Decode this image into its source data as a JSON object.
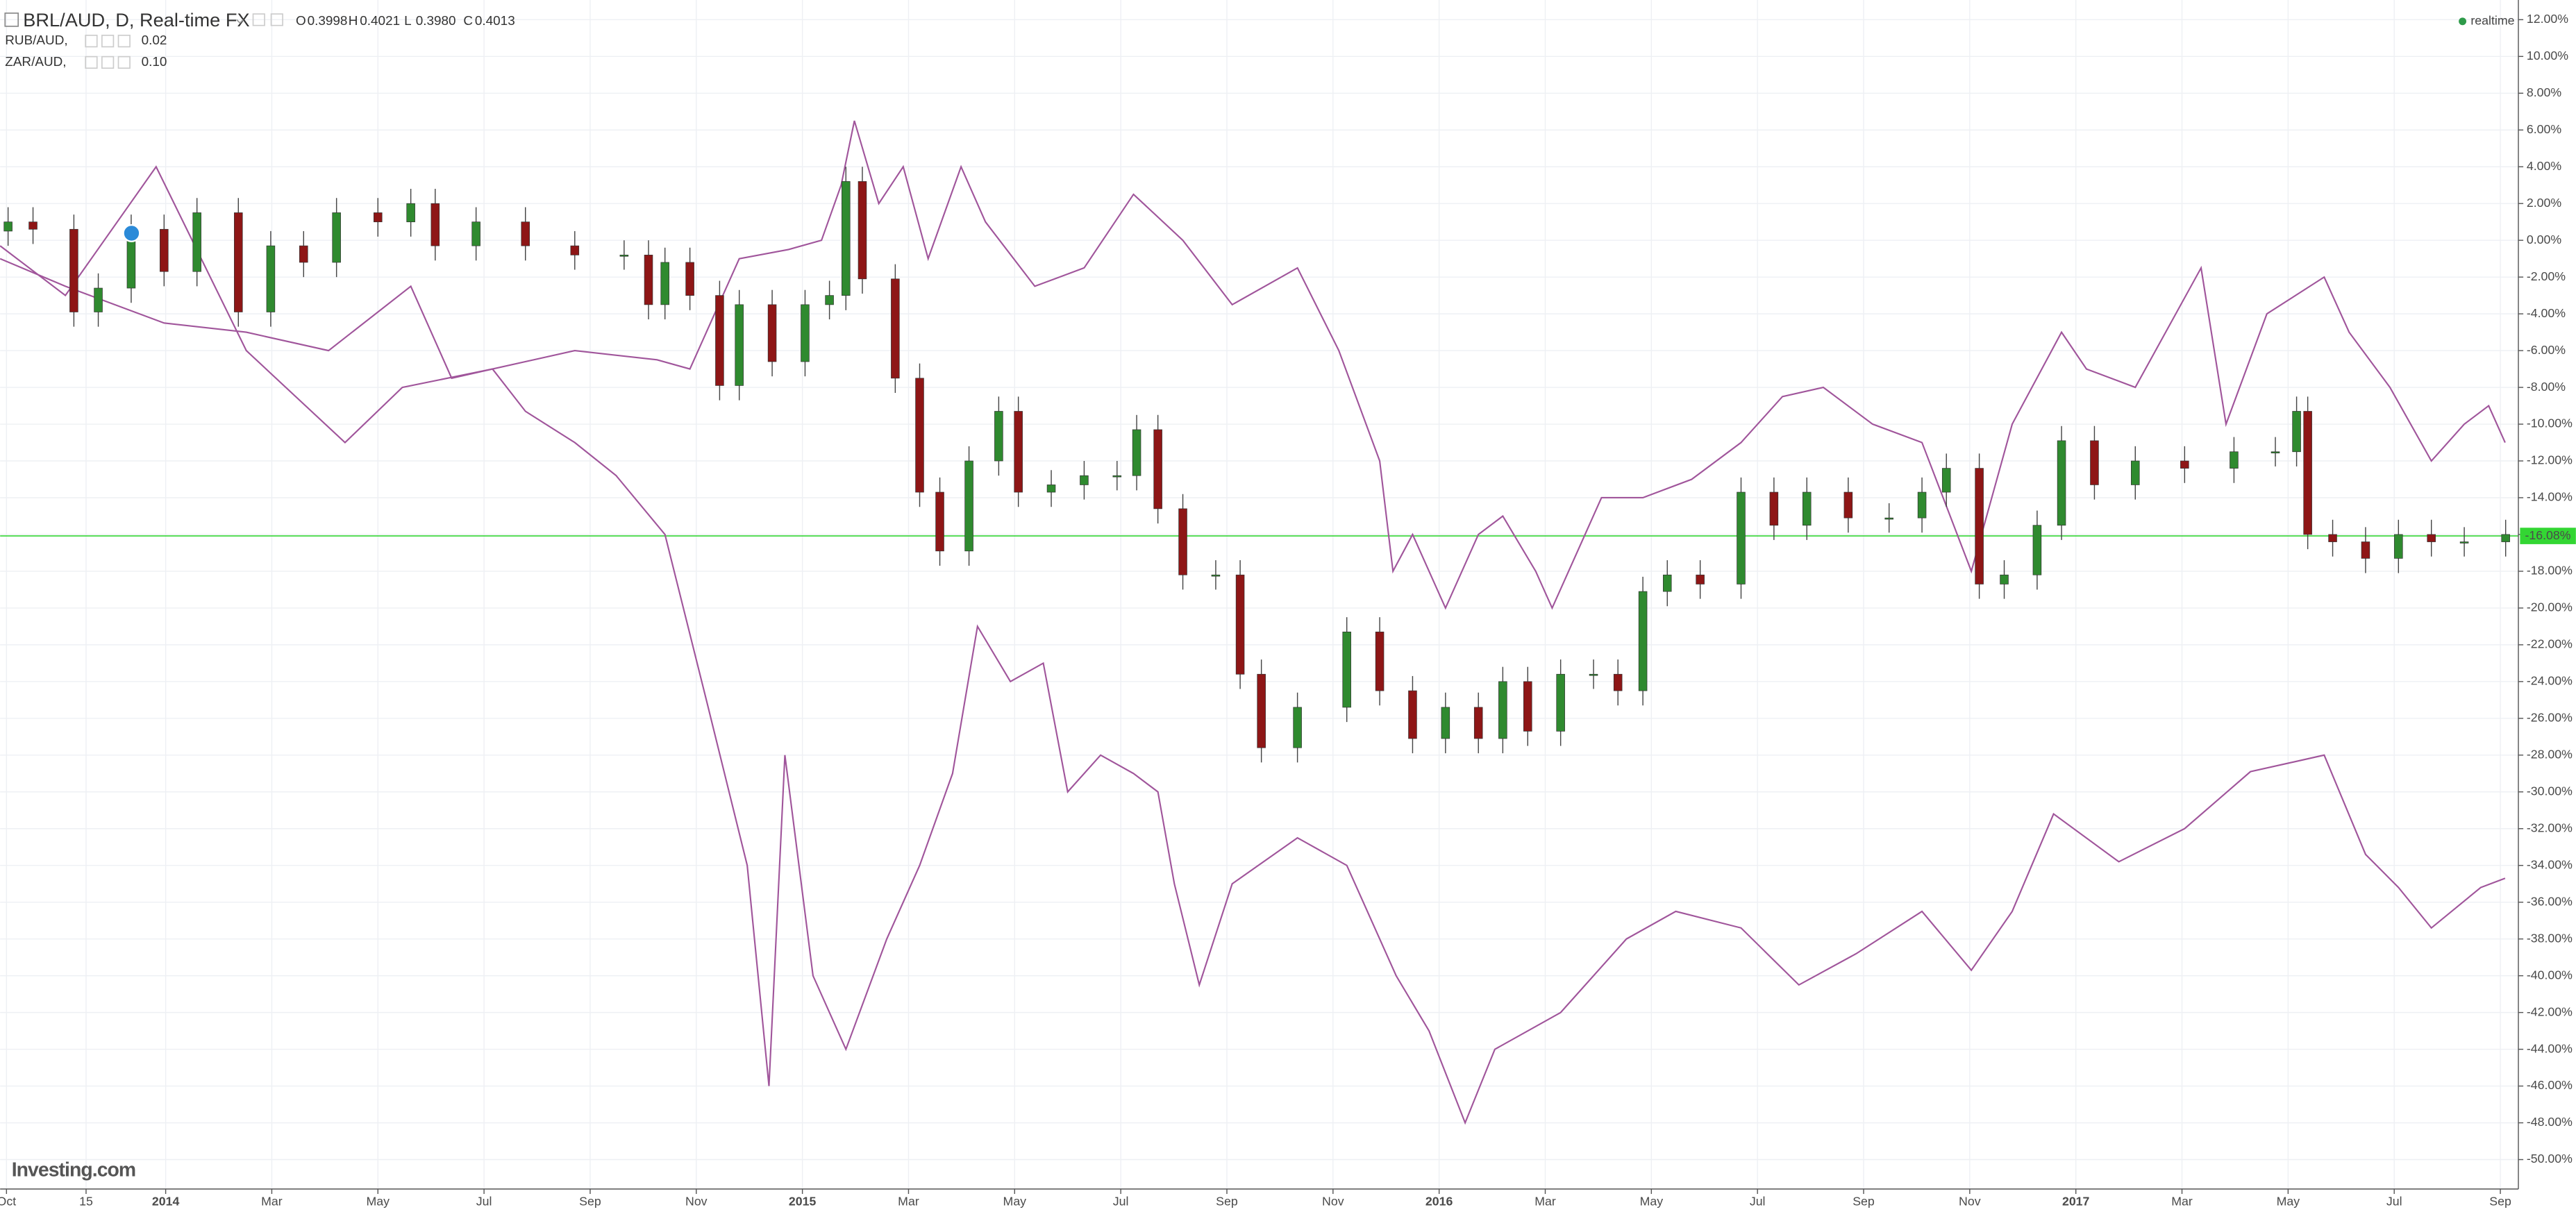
{
  "chart_data": {
    "type": "candlestick",
    "title": "BRL/AUD, D, Real-time FX",
    "ohlc": [
      {
        "label": "O",
        "value": "0.3998"
      },
      {
        "label": "H",
        "value": "0.4021"
      },
      {
        "label": "L",
        "value": "0.3980"
      },
      {
        "label": "C",
        "value": "0.4013"
      }
    ],
    "status": "realtime",
    "watermark": "Investing.com",
    "grid": true,
    "up_color": "#2f8a2f",
    "down_color": "#8e1616",
    "last_price": {
      "value": -16.08,
      "label": "-16.08%"
    },
    "last_price_color": "#33d633",
    "xlim": [
      -0.12,
      47.34
    ],
    "ylim": [
      -51.6,
      13.07
    ],
    "xticks": [
      {
        "value": 0,
        "label": "Oct"
      },
      {
        "value": 1.5,
        "label": "15"
      },
      {
        "value": 3,
        "label": "2014"
      },
      {
        "value": 5,
        "label": "Mar"
      },
      {
        "value": 7,
        "label": "May"
      },
      {
        "value": 9,
        "label": "Jul"
      },
      {
        "value": 11,
        "label": "Sep"
      },
      {
        "value": 13,
        "label": "Nov"
      },
      {
        "value": 15,
        "label": "2015"
      },
      {
        "value": 17,
        "label": "Mar"
      },
      {
        "value": 19,
        "label": "May"
      },
      {
        "value": 21,
        "label": "Jul"
      },
      {
        "value": 23,
        "label": "Sep"
      },
      {
        "value": 25,
        "label": "Nov"
      },
      {
        "value": 27,
        "label": "2016"
      },
      {
        "value": 29,
        "label": "Mar"
      },
      {
        "value": 31,
        "label": "May"
      },
      {
        "value": 33,
        "label": "Jul"
      },
      {
        "value": 35,
        "label": "Sep"
      },
      {
        "value": 37,
        "label": "Nov"
      },
      {
        "value": 39,
        "label": "2017"
      },
      {
        "value": 41,
        "label": "Mar"
      },
      {
        "value": 43,
        "label": "May"
      },
      {
        "value": 45,
        "label": "Jul"
      },
      {
        "value": 47,
        "label": "Sep"
      }
    ],
    "yticks": [
      {
        "value": 12,
        "label": "12.00%"
      },
      {
        "value": 10,
        "label": "10.00%"
      },
      {
        "value": 8,
        "label": "8.00%"
      },
      {
        "value": 6,
        "label": "6.00%"
      },
      {
        "value": 4,
        "label": "4.00%"
      },
      {
        "value": 2,
        "label": "2.00%"
      },
      {
        "value": 0,
        "label": "0.00%"
      },
      {
        "value": -2,
        "label": "-2.00%"
      },
      {
        "value": -4,
        "label": "-4.00%"
      },
      {
        "value": -6,
        "label": "-6.00%"
      },
      {
        "value": -8,
        "label": "-8.00%"
      },
      {
        "value": -10,
        "label": "-10.00%"
      },
      {
        "value": -12,
        "label": "-12.00%"
      },
      {
        "value": -14,
        "label": "-14.00%"
      },
      {
        "value": -16,
        "label": "-16.00%"
      },
      {
        "value": -18,
        "label": "-18.00%"
      },
      {
        "value": -20,
        "label": "-20.00%"
      },
      {
        "value": -22,
        "label": "-22.00%"
      },
      {
        "value": -24,
        "label": "-24.00%"
      },
      {
        "value": -26,
        "label": "-26.00%"
      },
      {
        "value": -28,
        "label": "-28.00%"
      },
      {
        "value": -30,
        "label": "-30.00%"
      },
      {
        "value": -32,
        "label": "-32.00%"
      },
      {
        "value": -34,
        "label": "-34.00%"
      },
      {
        "value": -36,
        "label": "-36.00%"
      },
      {
        "value": -38,
        "label": "-38.00%"
      },
      {
        "value": -40,
        "label": "-40.00%"
      },
      {
        "value": -42,
        "label": "-42.00%"
      },
      {
        "value": -44,
        "label": "-44.00%"
      },
      {
        "value": -46,
        "label": "-46.00%"
      },
      {
        "value": -48,
        "label": "-48.00%"
      },
      {
        "value": -50,
        "label": "-50.00%"
      }
    ],
    "x": [
      0.03,
      0.5,
      1.27,
      1.73,
      2.35,
      2.97,
      3.59,
      4.37,
      4.98,
      5.6,
      6.22,
      7.0,
      7.62,
      8.08,
      8.85,
      9.78,
      10.71,
      11.64,
      12.1,
      12.41,
      12.88,
      13.44,
      13.81,
      14.43,
      15.05,
      15.51,
      15.82,
      16.13,
      16.75,
      17.21,
      17.59,
      18.14,
      18.7,
      19.07,
      19.69,
      20.31,
      20.93,
      21.3,
      21.7,
      22.17,
      22.79,
      23.25,
      23.65,
      24.33,
      25.26,
      25.88,
      26.5,
      27.12,
      27.74,
      28.2,
      28.67,
      29.29,
      29.91,
      30.37,
      30.84,
      31.3,
      31.92,
      32.69,
      33.31,
      33.93,
      34.71,
      35.48,
      36.1,
      36.56,
      37.18,
      37.65,
      38.27,
      38.73,
      39.35,
      40.12,
      41.05,
      41.98,
      42.76,
      43.16,
      43.37,
      43.84,
      44.46,
      45.08,
      45.7,
      46.32,
      47.1
    ],
    "open": [
      0.5,
      1.0,
      0.6,
      -3.9,
      -2.6,
      0.6,
      -1.7,
      1.5,
      -3.9,
      -0.3,
      -1.2,
      1.5,
      1.0,
      2.0,
      -0.3,
      1.0,
      -0.3,
      -0.8,
      -0.8,
      -3.5,
      -1.2,
      -3.0,
      -7.9,
      -3.5,
      -6.6,
      -3.5,
      -3.0,
      3.2,
      -2.1,
      -7.5,
      -13.7,
      -16.9,
      -12.0,
      -9.3,
      -13.7,
      -13.3,
      -12.8,
      -12.8,
      -10.3,
      -14.6,
      -18.2,
      -18.2,
      -23.6,
      -27.6,
      -25.4,
      -21.3,
      -24.5,
      -27.1,
      -25.4,
      -27.1,
      -24.0,
      -26.7,
      -23.6,
      -23.6,
      -24.5,
      -19.1,
      -18.2,
      -18.7,
      -13.7,
      -15.5,
      -13.7,
      -15.1,
      -15.1,
      -13.7,
      -12.4,
      -18.7,
      -18.2,
      -15.5,
      -10.9,
      -13.3,
      -12.0,
      -12.4,
      -11.5,
      -11.5,
      -9.3,
      -16.0,
      -16.4,
      -17.3,
      -16.0,
      -16.4,
      -16.4
    ],
    "high": [
      1.8,
      1.8,
      1.4,
      -1.8,
      1.4,
      1.4,
      2.3,
      2.3,
      0.5,
      0.5,
      2.3,
      2.3,
      2.8,
      2.8,
      1.8,
      1.8,
      0.5,
      0.0,
      0.0,
      -0.4,
      -0.4,
      -2.2,
      -2.7,
      -2.7,
      -2.7,
      -2.2,
      4.0,
      4.0,
      -1.3,
      -6.7,
      -12.9,
      -11.2,
      -8.5,
      -8.5,
      -12.5,
      -12.0,
      -12.0,
      -9.5,
      -9.5,
      -13.8,
      -17.4,
      -17.4,
      -22.8,
      -24.6,
      -20.5,
      -20.5,
      -23.7,
      -24.6,
      -24.6,
      -23.2,
      -23.2,
      -22.8,
      -22.8,
      -22.8,
      -18.3,
      -17.4,
      -17.4,
      -12.9,
      -12.9,
      -12.9,
      -12.9,
      -14.3,
      -12.9,
      -11.6,
      -11.6,
      -17.4,
      -14.7,
      -10.1,
      -10.1,
      -11.2,
      -11.2,
      -10.7,
      -10.7,
      -8.5,
      -8.5,
      -15.2,
      -15.6,
      -15.2,
      -15.2,
      -15.6,
      -15.2
    ],
    "low": [
      -0.3,
      -0.2,
      -4.7,
      -4.7,
      -3.4,
      -2.5,
      -2.5,
      -4.7,
      -4.7,
      -2.0,
      -2.0,
      0.2,
      0.2,
      -1.1,
      -1.1,
      -1.1,
      -1.6,
      -1.6,
      -4.3,
      -4.3,
      -3.8,
      -8.7,
      -8.7,
      -7.4,
      -7.4,
      -4.3,
      -3.8,
      -2.9,
      -8.3,
      -14.5,
      -17.7,
      -17.7,
      -12.8,
      -14.5,
      -14.5,
      -14.1,
      -13.6,
      -13.6,
      -15.4,
      -19.0,
      -19.0,
      -24.4,
      -28.4,
      -28.4,
      -26.2,
      -25.3,
      -27.9,
      -27.9,
      -27.9,
      -27.9,
      -27.5,
      -27.5,
      -24.4,
      -25.3,
      -25.3,
      -19.9,
      -19.5,
      -19.5,
      -16.3,
      -16.3,
      -15.9,
      -15.9,
      -15.9,
      -14.5,
      -19.5,
      -19.5,
      -19.0,
      -16.3,
      -14.1,
      -14.1,
      -13.2,
      -13.2,
      -12.3,
      -12.3,
      -16.8,
      -17.2,
      -18.1,
      -18.1,
      -17.2,
      -17.2,
      -17.2
    ],
    "close": [
      1.0,
      0.6,
      -3.9,
      -2.6,
      0.6,
      -1.7,
      1.5,
      -3.9,
      -0.3,
      -1.2,
      1.5,
      1.0,
      2.0,
      -0.3,
      1.0,
      -0.3,
      -0.8,
      -0.8,
      -3.5,
      -1.2,
      -3.0,
      -7.9,
      -3.5,
      -6.6,
      -3.5,
      -3.0,
      3.2,
      -2.1,
      -7.5,
      -13.7,
      -16.9,
      -12.0,
      -9.3,
      -13.7,
      -13.3,
      -12.8,
      -12.8,
      -10.3,
      -14.6,
      -18.2,
      -18.2,
      -23.6,
      -27.6,
      -25.4,
      -21.3,
      -24.5,
      -27.1,
      -25.4,
      -27.1,
      -24.0,
      -26.7,
      -23.6,
      -23.6,
      -24.5,
      -19.1,
      -18.2,
      -18.7,
      -13.7,
      -15.5,
      -13.7,
      -15.1,
      -15.1,
      -13.7,
      -12.4,
      -18.7,
      -18.2,
      -15.5,
      -10.9,
      -13.3,
      -12.0,
      -12.4,
      -11.5,
      -11.5,
      -9.3,
      -16.0,
      -16.4,
      -17.3,
      -16.0,
      -16.4,
      -16.4,
      -16.0
    ],
    "series": [
      {
        "name": "RUB/AUD,",
        "last": "0.02",
        "color": "#a0559b",
        "x": [
          -0.12,
          1.11,
          2.82,
          4.52,
          6.38,
          7.46,
          9.16,
          9.78,
          10.71,
          11.49,
          12.41,
          13.19,
          13.96,
          14.37,
          14.67,
          15.2,
          15.82,
          16.59,
          17.21,
          17.83,
          18.3,
          18.92,
          19.54,
          20.0,
          20.62,
          21.24,
          21.7,
          22.01,
          22.48,
          23.1,
          24.33,
          25.26,
          26.19,
          26.81,
          27.49,
          28.05,
          29.29,
          30.53,
          31.46,
          32.69,
          33.78,
          34.86,
          36.1,
          37.03,
          37.8,
          38.58,
          39.81,
          41.05,
          42.29,
          43.68,
          44.46,
          45.08,
          45.7,
          46.63,
          47.09
        ],
        "values": [
          -0.3,
          -3,
          4,
          -6,
          -11,
          -8,
          -7,
          -9.3,
          -11,
          -12.8,
          -16,
          -25,
          -34,
          -46,
          -28,
          -40,
          -44,
          -38,
          -34,
          -29,
          -21,
          -24,
          -23,
          -30,
          -28,
          -29,
          -30,
          -35,
          -40.5,
          -35,
          -32.5,
          -34,
          -40,
          -43,
          -48,
          -44,
          -42,
          -38,
          -36.5,
          -37.4,
          -40.5,
          -38.8,
          -36.5,
          -39.7,
          -36.5,
          -31.2,
          -33.8,
          -32,
          -28.9,
          -28,
          -33.4,
          -35.2,
          -37.4,
          -35.2,
          -34.7
        ]
      },
      {
        "name": "ZAR/AUD,",
        "last": "0.10",
        "color": "#a0559b",
        "x": [
          -0.12,
          1.11,
          2.97,
          4.52,
          6.07,
          7.62,
          8.39,
          9.16,
          10.71,
          12.26,
          12.88,
          13.81,
          14.74,
          15.36,
          15.73,
          15.98,
          16.44,
          16.9,
          17.37,
          17.99,
          18.45,
          19.38,
          20.31,
          21.24,
          22.17,
          23.1,
          24.33,
          25.11,
          25.88,
          26.13,
          26.5,
          27.12,
          27.74,
          28.2,
          28.82,
          29.13,
          30.06,
          30.84,
          31.76,
          32.69,
          33.47,
          34.24,
          35.17,
          36.1,
          37.03,
          37.8,
          38.73,
          39.2,
          40.12,
          41.36,
          41.83,
          42.6,
          43.68,
          44.15,
          44.92,
          45.7,
          46.32,
          46.78,
          47.09
        ],
        "values": [
          -1,
          -2.5,
          -4.5,
          -5,
          -6,
          -2.5,
          -7.5,
          -7,
          -6,
          -6.5,
          -7,
          -1,
          -0.5,
          0,
          3,
          6.5,
          2,
          4,
          -1,
          4,
          1,
          -2.5,
          -1.5,
          2.5,
          0,
          -3.5,
          -1.5,
          -6,
          -12,
          -18,
          -16,
          -20,
          -16,
          -15,
          -18,
          -20,
          -14,
          -14,
          -13,
          -11,
          -8.5,
          -8,
          -10,
          -11,
          -18,
          -10,
          -5,
          -7,
          -8,
          -1.5,
          -10,
          -4,
          -2,
          -5,
          -8,
          -12,
          -10,
          -9,
          -11
        ]
      }
    ]
  }
}
